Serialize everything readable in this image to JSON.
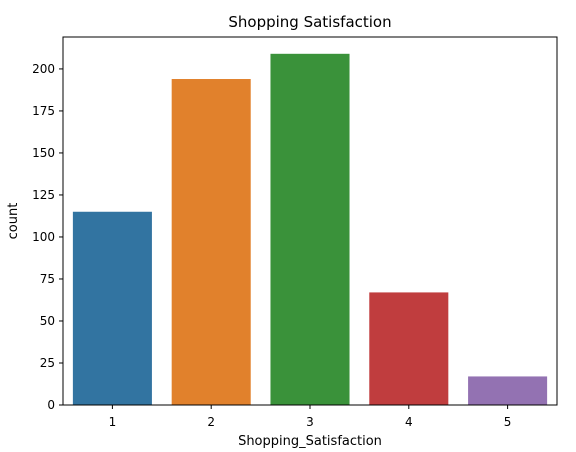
{
  "chart_data": {
    "type": "bar",
    "title": "Shopping Satisfaction",
    "xlabel": "Shopping_Satisfaction",
    "ylabel": "count",
    "categories": [
      "1",
      "2",
      "3",
      "4",
      "5"
    ],
    "values": [
      115,
      194,
      209,
      67,
      17
    ],
    "colors": [
      "#3274a1",
      "#e1812c",
      "#3a923a",
      "#c03d3e",
      "#9372b2"
    ],
    "ylim": [
      0,
      219
    ],
    "yticks": [
      0,
      25,
      50,
      75,
      100,
      125,
      150,
      175,
      200
    ],
    "grid": false,
    "legend": "none"
  }
}
